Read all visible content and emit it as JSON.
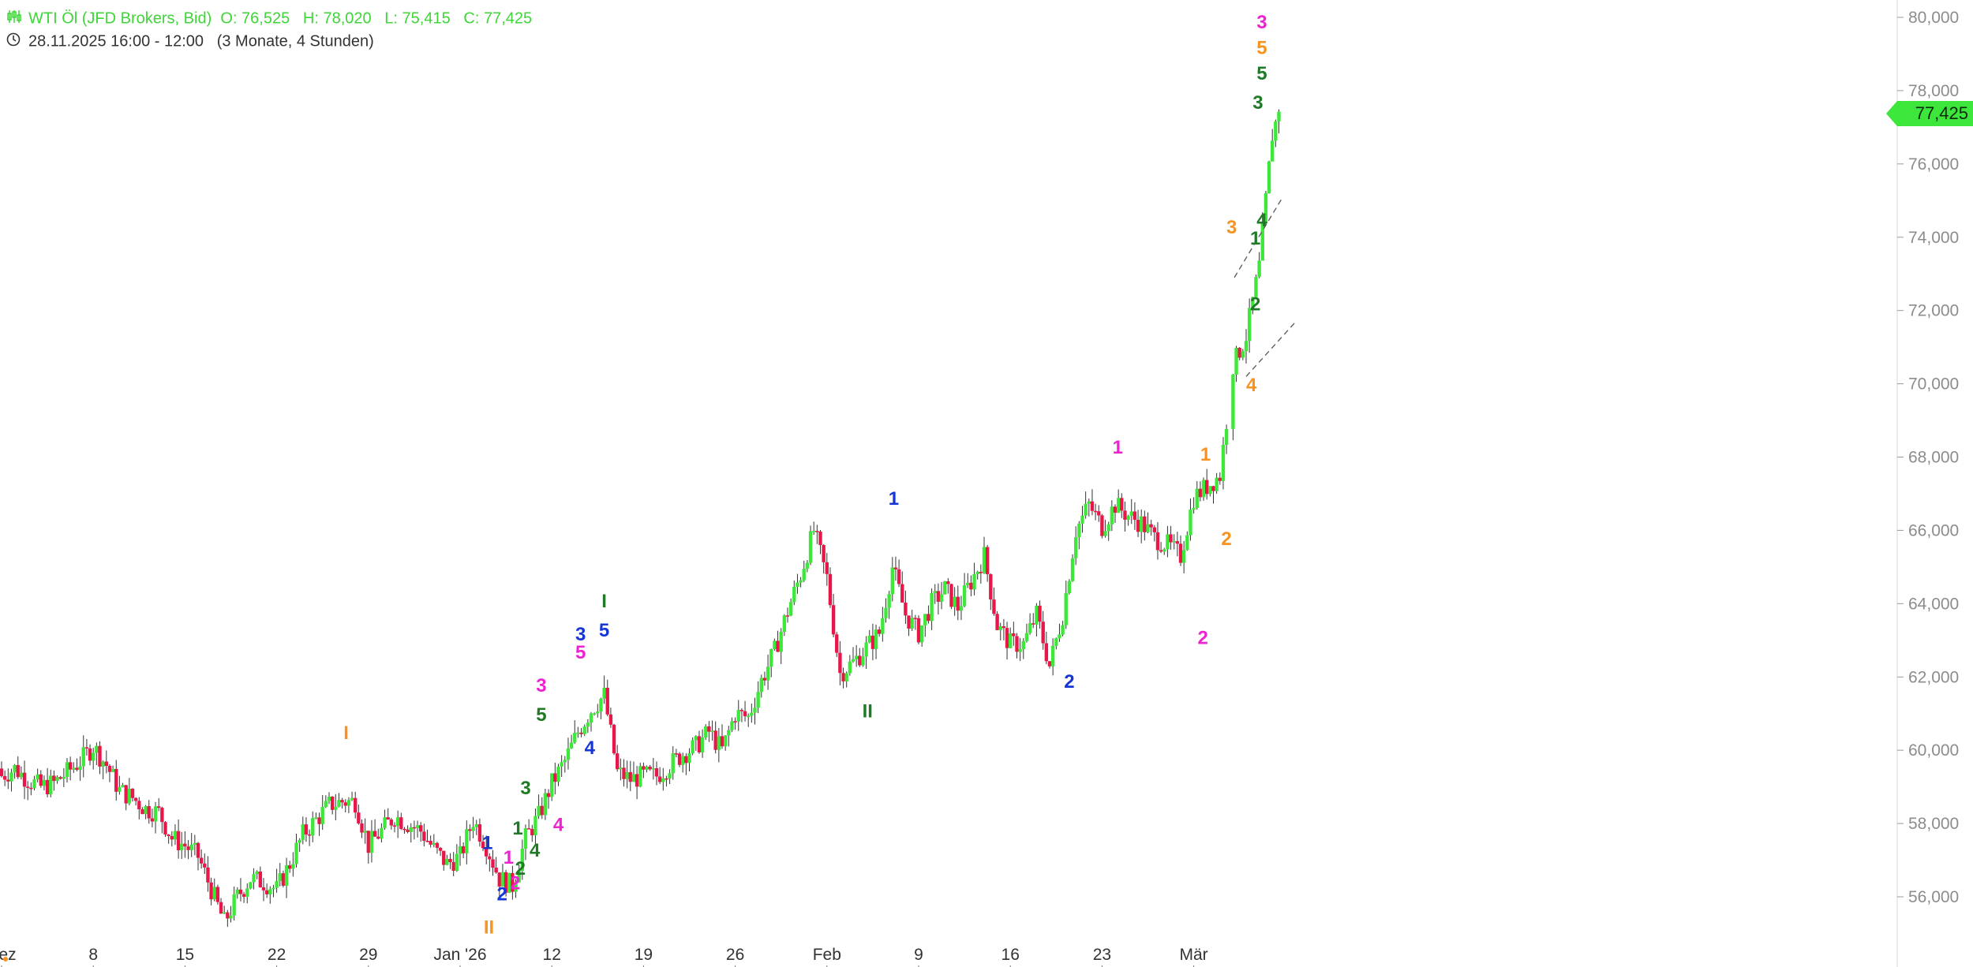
{
  "header": {
    "instrument": "WTI Öl (JFD Brokers, Bid)",
    "open_label": "O:",
    "open": "76,525",
    "high_label": "H:",
    "high": "78,020",
    "low_label": "L:",
    "low": "75,415",
    "close_label": "C:",
    "close": "77,425",
    "date_range": "28.11.2025 16:00 - 12:00",
    "period": "(3 Monate, 4 Stunden)",
    "instrument_icon": "candlestick-icon",
    "time_icon": "clock-icon"
  },
  "current_price_label": "77,425",
  "colors": {
    "up": "#3ee83a",
    "down": "#e8174a",
    "wick": "#333333",
    "orange": "#f7931e",
    "magenta": "#ee22d0",
    "green": "#1f7a25",
    "blue": "#1436d6"
  },
  "chart_data": {
    "type": "candlestick",
    "timeframe": "4 Stunden",
    "ylim": [
      54800,
      80600
    ],
    "y_ticks": [
      "80,000",
      "78,000",
      "76,000",
      "74,000",
      "72,000",
      "70,000",
      "68,000",
      "66,000",
      "64,000",
      "62,000",
      "60,000",
      "58,000",
      "56,000"
    ],
    "y_tick_values": [
      80000,
      78000,
      76000,
      74000,
      72000,
      70000,
      68000,
      66000,
      64000,
      62000,
      60000,
      58000,
      56000
    ],
    "x_ticks": [
      {
        "label": "Dez",
        "day": 0
      },
      {
        "label": "8",
        "day": 7
      },
      {
        "label": "15",
        "day": 14
      },
      {
        "label": "22",
        "day": 21
      },
      {
        "label": "29",
        "day": 28
      },
      {
        "label": "Jan '26",
        "day": 35
      },
      {
        "label": "12",
        "day": 42
      },
      {
        "label": "19",
        "day": 49
      },
      {
        "label": "26",
        "day": 56
      },
      {
        "label": "Feb",
        "day": 63
      },
      {
        "label": "9",
        "day": 70
      },
      {
        "label": "16",
        "day": 77
      },
      {
        "label": "23",
        "day": 84
      },
      {
        "label": "Mär",
        "day": 91
      }
    ],
    "price_path": [
      [
        0,
        59300
      ],
      [
        1,
        59500
      ],
      [
        2,
        59200
      ],
      [
        3,
        59000
      ],
      [
        4,
        59100
      ],
      [
        5,
        59400
      ],
      [
        6,
        59700
      ],
      [
        7,
        60100
      ],
      [
        8,
        59600
      ],
      [
        9,
        58900
      ],
      [
        10,
        58700
      ],
      [
        11,
        58400
      ],
      [
        12,
        58300
      ],
      [
        13,
        57600
      ],
      [
        14,
        57400
      ],
      [
        15,
        57100
      ],
      [
        16,
        56200
      ],
      [
        17,
        55300
      ],
      [
        18,
        56000
      ],
      [
        19,
        56500
      ],
      [
        20,
        56400
      ],
      [
        21,
        56200
      ],
      [
        22,
        56900
      ],
      [
        23,
        57700
      ],
      [
        24,
        58100
      ],
      [
        25,
        58500
      ],
      [
        26,
        58600
      ],
      [
        27,
        58600
      ],
      [
        28,
        57400
      ],
      [
        29,
        57800
      ],
      [
        30,
        58200
      ],
      [
        31,
        58000
      ],
      [
        32,
        57800
      ],
      [
        33,
        57300
      ],
      [
        34,
        56900
      ],
      [
        35,
        57100
      ],
      [
        36,
        58100
      ],
      [
        37,
        57400
      ],
      [
        38,
        56500
      ],
      [
        39,
        56300
      ],
      [
        40,
        57600
      ],
      [
        41,
        58200
      ],
      [
        42,
        59100
      ],
      [
        43,
        59700
      ],
      [
        44,
        60500
      ],
      [
        45,
        61100
      ],
      [
        46,
        61500
      ],
      [
        47,
        59400
      ],
      [
        48,
        59200
      ],
      [
        49,
        59300
      ],
      [
        50,
        59300
      ],
      [
        51,
        59600
      ],
      [
        52,
        59900
      ],
      [
        53,
        60100
      ],
      [
        54,
        60500
      ],
      [
        55,
        60000
      ],
      [
        56,
        61000
      ],
      [
        57,
        60900
      ],
      [
        58,
        61900
      ],
      [
        59,
        62700
      ],
      [
        60,
        63800
      ],
      [
        61,
        64800
      ],
      [
        62,
        66000
      ],
      [
        63,
        64700
      ],
      [
        64,
        62100
      ],
      [
        65,
        62400
      ],
      [
        66,
        62800
      ],
      [
        67,
        63200
      ],
      [
        68,
        65000
      ],
      [
        69,
        63700
      ],
      [
        70,
        63200
      ],
      [
        71,
        64000
      ],
      [
        72,
        64400
      ],
      [
        73,
        63900
      ],
      [
        74,
        64600
      ],
      [
        75,
        65300
      ],
      [
        76,
        63400
      ],
      [
        77,
        62900
      ],
      [
        78,
        62900
      ],
      [
        79,
        63700
      ],
      [
        80,
        62300
      ],
      [
        81,
        63700
      ],
      [
        82,
        66000
      ],
      [
        83,
        66700
      ],
      [
        84,
        66100
      ],
      [
        85,
        66700
      ],
      [
        86,
        66400
      ],
      [
        87,
        66200
      ],
      [
        88,
        65800
      ],
      [
        89,
        65600
      ],
      [
        90,
        65300
      ],
      [
        91,
        66900
      ],
      [
        92,
        67200
      ],
      [
        93,
        67500
      ],
      [
        94,
        70500
      ],
      [
        95,
        71300
      ],
      [
        96,
        73200
      ],
      [
        97,
        76800
      ],
      [
        97.5,
        77425
      ]
    ],
    "gap": {
      "from_day": 93.5,
      "to_day": 94
    },
    "last_close": 77425,
    "channel_lines": [
      {
        "x1": 94.1,
        "y1": 72900,
        "x2": 97.8,
        "y2": 75100
      },
      {
        "x1": 95.0,
        "y1": 70200,
        "x2": 98.8,
        "y2": 71700
      }
    ],
    "wave_labels": [
      {
        "text": "I",
        "day": 26.3,
        "price": 60300,
        "color": "orange"
      },
      {
        "text": "II",
        "day": 37.2,
        "price": 55000,
        "color": "orange"
      },
      {
        "text": "1",
        "day": 37.1,
        "price": 57300,
        "color": "blue"
      },
      {
        "text": "2",
        "day": 38.2,
        "price": 55900,
        "color": "blue"
      },
      {
        "text": "1",
        "day": 38.7,
        "price": 56900,
        "color": "magenta"
      },
      {
        "text": "2",
        "day": 39.2,
        "price": 56200,
        "color": "magenta"
      },
      {
        "text": "2",
        "day": 39.6,
        "price": 56600,
        "color": "green"
      },
      {
        "text": "1",
        "day": 39.4,
        "price": 57700,
        "color": "green"
      },
      {
        "text": "3",
        "day": 40.0,
        "price": 58800,
        "color": "green"
      },
      {
        "text": "4",
        "day": 40.7,
        "price": 57100,
        "color": "green"
      },
      {
        "text": "5",
        "day": 41.2,
        "price": 60800,
        "color": "green"
      },
      {
        "text": "3",
        "day": 41.2,
        "price": 61600,
        "color": "magenta"
      },
      {
        "text": "4",
        "day": 42.5,
        "price": 57800,
        "color": "magenta"
      },
      {
        "text": "3",
        "day": 44.2,
        "price": 63000,
        "color": "blue"
      },
      {
        "text": "5",
        "day": 44.2,
        "price": 62500,
        "color": "magenta"
      },
      {
        "text": "4",
        "day": 44.9,
        "price": 59900,
        "color": "blue"
      },
      {
        "text": "5",
        "day": 46.0,
        "price": 63100,
        "color": "blue"
      },
      {
        "text": "I",
        "day": 46.0,
        "price": 63900,
        "color": "green"
      },
      {
        "text": "1",
        "day": 68.1,
        "price": 66700,
        "color": "blue"
      },
      {
        "text": "II",
        "day": 66.1,
        "price": 60900,
        "color": "green"
      },
      {
        "text": "2",
        "day": 81.5,
        "price": 61700,
        "color": "blue"
      },
      {
        "text": "1",
        "day": 85.2,
        "price": 68100,
        "color": "magenta"
      },
      {
        "text": "2",
        "day": 91.7,
        "price": 62900,
        "color": "magenta"
      },
      {
        "text": "1",
        "day": 91.9,
        "price": 67900,
        "color": "orange"
      },
      {
        "text": "2",
        "day": 93.5,
        "price": 65600,
        "color": "orange"
      },
      {
        "text": "3",
        "day": 93.9,
        "price": 74100,
        "color": "orange"
      },
      {
        "text": "4",
        "day": 95.4,
        "price": 69800,
        "color": "orange"
      },
      {
        "text": "2",
        "day": 95.7,
        "price": 72000,
        "color": "green"
      },
      {
        "text": "1",
        "day": 95.7,
        "price": 73800,
        "color": "green"
      },
      {
        "text": "4",
        "day": 96.2,
        "price": 74300,
        "color": "green"
      },
      {
        "text": "3",
        "day": 95.9,
        "price": 77500,
        "color": "green"
      },
      {
        "text": "5",
        "day": 96.2,
        "price": 78300,
        "color": "green"
      },
      {
        "text": "5",
        "day": 96.2,
        "price": 79000,
        "color": "orange"
      },
      {
        "text": "3",
        "day": 96.2,
        "price": 79700,
        "color": "magenta"
      }
    ]
  }
}
